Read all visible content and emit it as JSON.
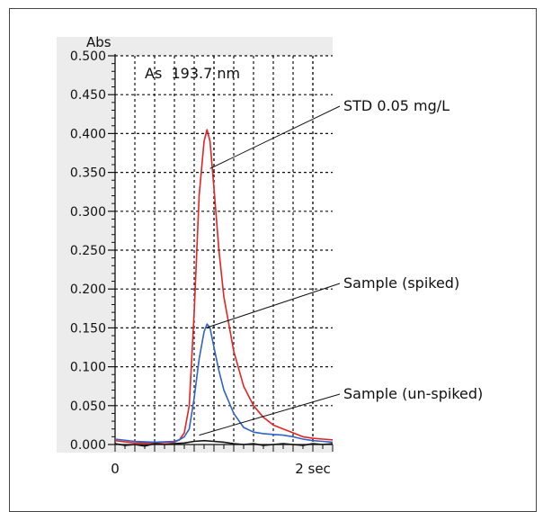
{
  "chart_data": {
    "type": "line",
    "title": "As  193.7 nm",
    "xlabel": "",
    "ylabel": "Abs",
    "x_tick_labels": [
      "0",
      "2 sec"
    ],
    "xlim": [
      0,
      2.2
    ],
    "ylim": [
      0,
      0.5
    ],
    "y_tick_labels": [
      "0.000",
      "0.050",
      "0.100",
      "0.150",
      "0.200",
      "0.250",
      "0.300",
      "0.350",
      "0.400",
      "0.450",
      "0.500"
    ],
    "grid": true,
    "marker_line_x": 1.0,
    "series": [
      {
        "name": "STD 0.05 mg/L",
        "color": "#e52323",
        "x": [
          0,
          0.2,
          0.4,
          0.6,
          0.65,
          0.7,
          0.75,
          0.8,
          0.85,
          0.9,
          0.93,
          0.96,
          1.0,
          1.05,
          1.1,
          1.2,
          1.3,
          1.4,
          1.5,
          1.6,
          1.7,
          1.8,
          1.9,
          2.0,
          2.1,
          2.2
        ],
        "values": [
          0.005,
          0.002,
          0.002,
          0.003,
          0.006,
          0.015,
          0.05,
          0.17,
          0.32,
          0.39,
          0.405,
          0.39,
          0.33,
          0.25,
          0.19,
          0.12,
          0.075,
          0.05,
          0.035,
          0.025,
          0.02,
          0.015,
          0.01,
          0.008,
          0.007,
          0.006
        ]
      },
      {
        "name": "Sample (spiked)",
        "color": "#2f63c4",
        "x": [
          0,
          0.2,
          0.4,
          0.6,
          0.65,
          0.7,
          0.75,
          0.8,
          0.85,
          0.9,
          0.93,
          0.96,
          1.0,
          1.05,
          1.1,
          1.2,
          1.3,
          1.4,
          1.5,
          1.6,
          1.7,
          1.8,
          1.9,
          2.0,
          2.1,
          2.2
        ],
        "values": [
          0.007,
          0.004,
          0.003,
          0.004,
          0.006,
          0.01,
          0.02,
          0.06,
          0.11,
          0.145,
          0.155,
          0.15,
          0.125,
          0.095,
          0.07,
          0.04,
          0.022,
          0.016,
          0.014,
          0.013,
          0.012,
          0.01,
          0.007,
          0.005,
          0.004,
          0.003
        ]
      },
      {
        "name": "Sample (un-spiked)",
        "color": "#111111",
        "x": [
          0,
          0.1,
          0.2,
          0.3,
          0.4,
          0.5,
          0.6,
          0.7,
          0.8,
          0.9,
          1.0,
          1.1,
          1.2,
          1.3,
          1.4,
          1.5,
          1.6,
          1.7,
          1.8,
          1.9,
          2.0,
          2.1,
          2.2
        ],
        "values": [
          0.001,
          -0.001,
          0.0,
          -0.002,
          0.001,
          0.0,
          0.001,
          0.002,
          0.004,
          0.005,
          0.004,
          0.003,
          0.001,
          0.0,
          0.001,
          -0.001,
          0.0,
          0.001,
          0.0,
          -0.001,
          0.001,
          0.0,
          0.001
        ]
      }
    ]
  }
}
